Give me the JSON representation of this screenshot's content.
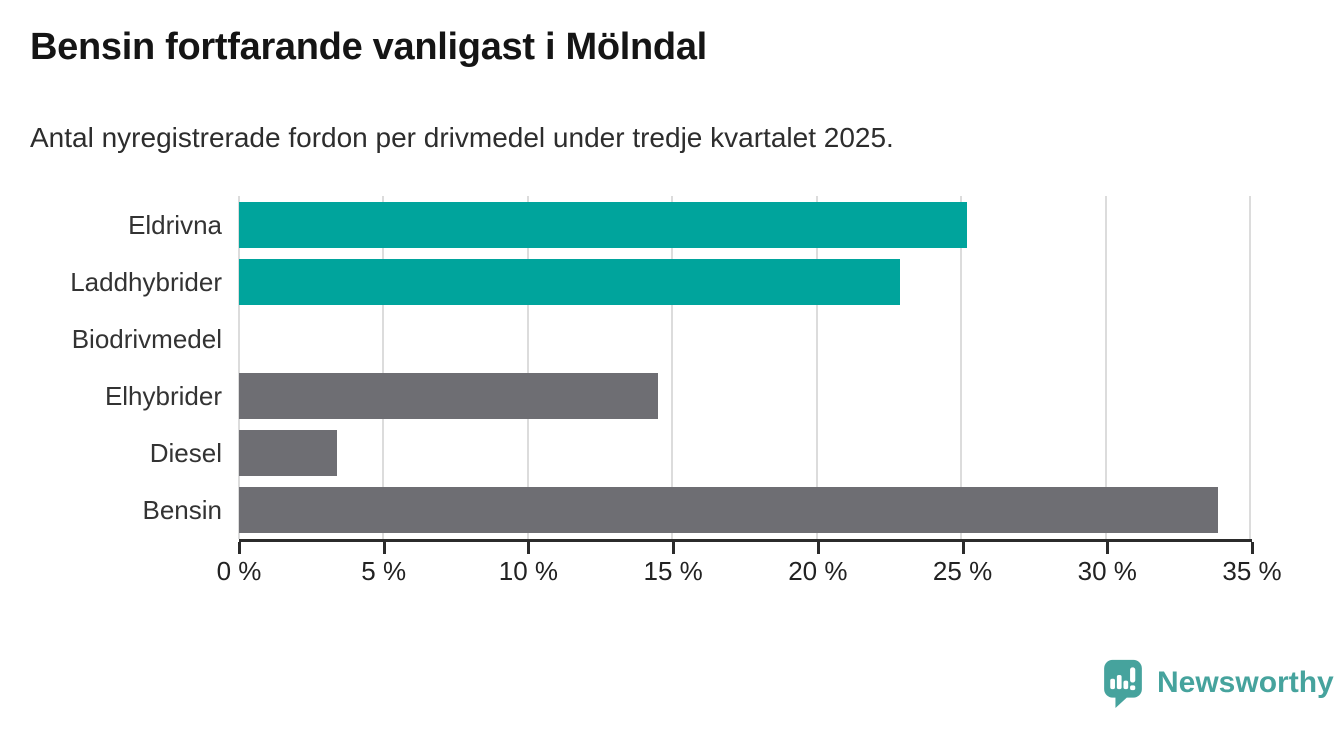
{
  "header": {
    "title": "Bensin fortfarande vanligast i Mölndal",
    "subtitle": "Antal nyregistrerade fordon per drivmedel under tredje kvartalet 2025."
  },
  "chart_data": {
    "type": "bar",
    "orientation": "horizontal",
    "title": "Bensin fortfarande vanligast i Mölndal",
    "subtitle": "Antal nyregistrerade fordon per drivmedel under tredje kvartalet 2025.",
    "categories": [
      "Eldrivna",
      "Laddhybrider",
      "Biodrivmedel",
      "Elhybrider",
      "Diesel",
      "Bensin"
    ],
    "values": [
      25.2,
      22.9,
      0,
      14.5,
      3.4,
      33.9
    ],
    "unit": "%",
    "bar_colors": [
      "#00A49C",
      "#00A49C",
      "#6E6E73",
      "#6E6E73",
      "#6E6E73",
      "#6E6E73"
    ],
    "xlabel": "",
    "ylabel": "",
    "xlim": [
      0,
      35
    ],
    "x_ticks": [
      0,
      5,
      10,
      15,
      20,
      25,
      30,
      35
    ],
    "x_tick_labels": [
      "0 %",
      "5 %",
      "10 %",
      "15 %",
      "20 %",
      "25 %",
      "30 %",
      "35 %"
    ],
    "grid": "vertical-only",
    "legend": "none"
  },
  "colors": {
    "accent_teal": "#00A49C",
    "neutral_gray": "#6E6E73",
    "gridline": "#dcdcdc",
    "axis": "#2b2b2b",
    "title_text": "#151515",
    "label_text": "#333333",
    "logo_teal": "#46A39D"
  },
  "footer": {
    "brand": "Newsworthy",
    "logo_icon": "bar-chart-pin-icon"
  }
}
